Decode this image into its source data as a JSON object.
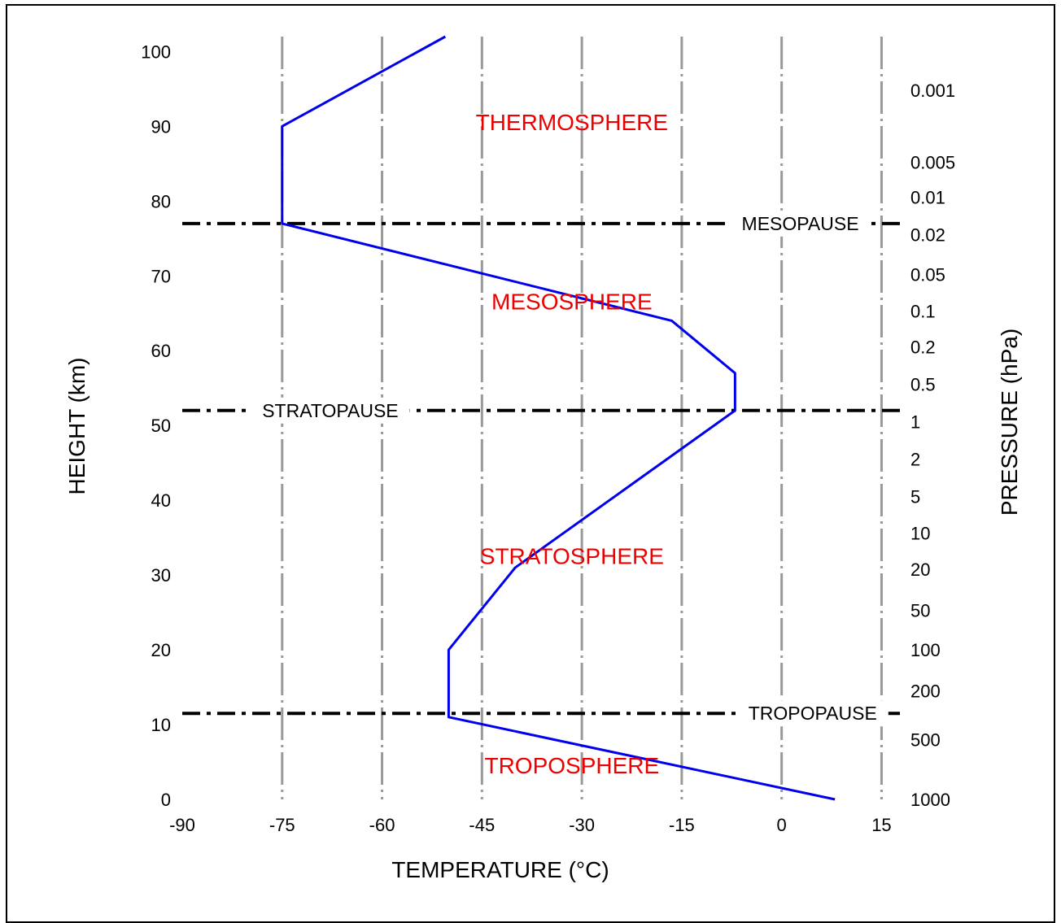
{
  "chart_data": {
    "type": "line",
    "xlabel": "TEMPERATURE (°C)",
    "ylabel": "HEIGHT (km)",
    "y2label": "PRESSURE (hPa)",
    "xlim": [
      -90,
      18
    ],
    "ylim": [
      0,
      102
    ],
    "x_ticks": [
      "-90",
      "-75",
      "-60",
      "-45",
      "-30",
      "-15",
      "0",
      "15"
    ],
    "x_tick_values": [
      -90,
      -75,
      -60,
      -45,
      -30,
      -15,
      0,
      15
    ],
    "y_ticks": [
      "0",
      "10",
      "20",
      "30",
      "40",
      "50",
      "60",
      "70",
      "80",
      "90",
      "100"
    ],
    "y_tick_values": [
      0,
      10,
      20,
      30,
      40,
      50,
      60,
      70,
      80,
      90,
      100
    ],
    "pressure_ticks": [
      {
        "label": "1000",
        "height": 0
      },
      {
        "label": "500",
        "height": 8
      },
      {
        "label": "200",
        "height": 14.5
      },
      {
        "label": "100",
        "height": 20
      },
      {
        "label": "50",
        "height": 25.3
      },
      {
        "label": "20",
        "height": 30.8
      },
      {
        "label": "10",
        "height": 35.6
      },
      {
        "label": "5",
        "height": 40.5
      },
      {
        "label": "2",
        "height": 45.5
      },
      {
        "label": "1",
        "height": 50.5
      },
      {
        "label": "0.5",
        "height": 55.5
      },
      {
        "label": "0.2",
        "height": 60.5
      },
      {
        "label": "0.1",
        "height": 65.3
      },
      {
        "label": "0.05",
        "height": 70.2
      },
      {
        "label": "0.02",
        "height": 75.5
      },
      {
        "label": "0.01",
        "height": 80.5
      },
      {
        "label": "0.005",
        "height": 85.2
      },
      {
        "label": "0.001",
        "height": 94.8
      }
    ],
    "series": [
      {
        "color": "#0000ee",
        "points": [
          {
            "x": 8,
            "y": 0
          },
          {
            "x": -50,
            "y": 11
          },
          {
            "x": -50,
            "y": 20
          },
          {
            "x": -40,
            "y": 31
          },
          {
            "x": -7,
            "y": 52
          },
          {
            "x": -7,
            "y": 57
          },
          {
            "x": -16.5,
            "y": 64
          },
          {
            "x": -75,
            "y": 77
          },
          {
            "x": -75,
            "y": 90
          },
          {
            "x": -50.5,
            "y": 102
          }
        ]
      }
    ],
    "boundaries": [
      {
        "name": "TROPOPAUSE",
        "height": 11.5,
        "label_x": -5
      },
      {
        "name": "STRATOPAUSE",
        "height": 52,
        "label_x": -78
      },
      {
        "name": "MESOPAUSE",
        "height": 77,
        "label_x": -6
      }
    ],
    "layers": [
      {
        "name": "TROPOSPHERE",
        "x": -31.5,
        "height": 3.5
      },
      {
        "name": "STRATOSPHERE",
        "x": -31.5,
        "height": 31.5
      },
      {
        "name": "MESOSPHERE",
        "x": -31.5,
        "height": 65.5
      },
      {
        "name": "THERMOSPHERE",
        "x": -31.5,
        "height": 89.5
      }
    ],
    "layer_color": "#ee0000",
    "line_color": "#0000ee",
    "boundary_color": "#000000",
    "grid": true
  }
}
